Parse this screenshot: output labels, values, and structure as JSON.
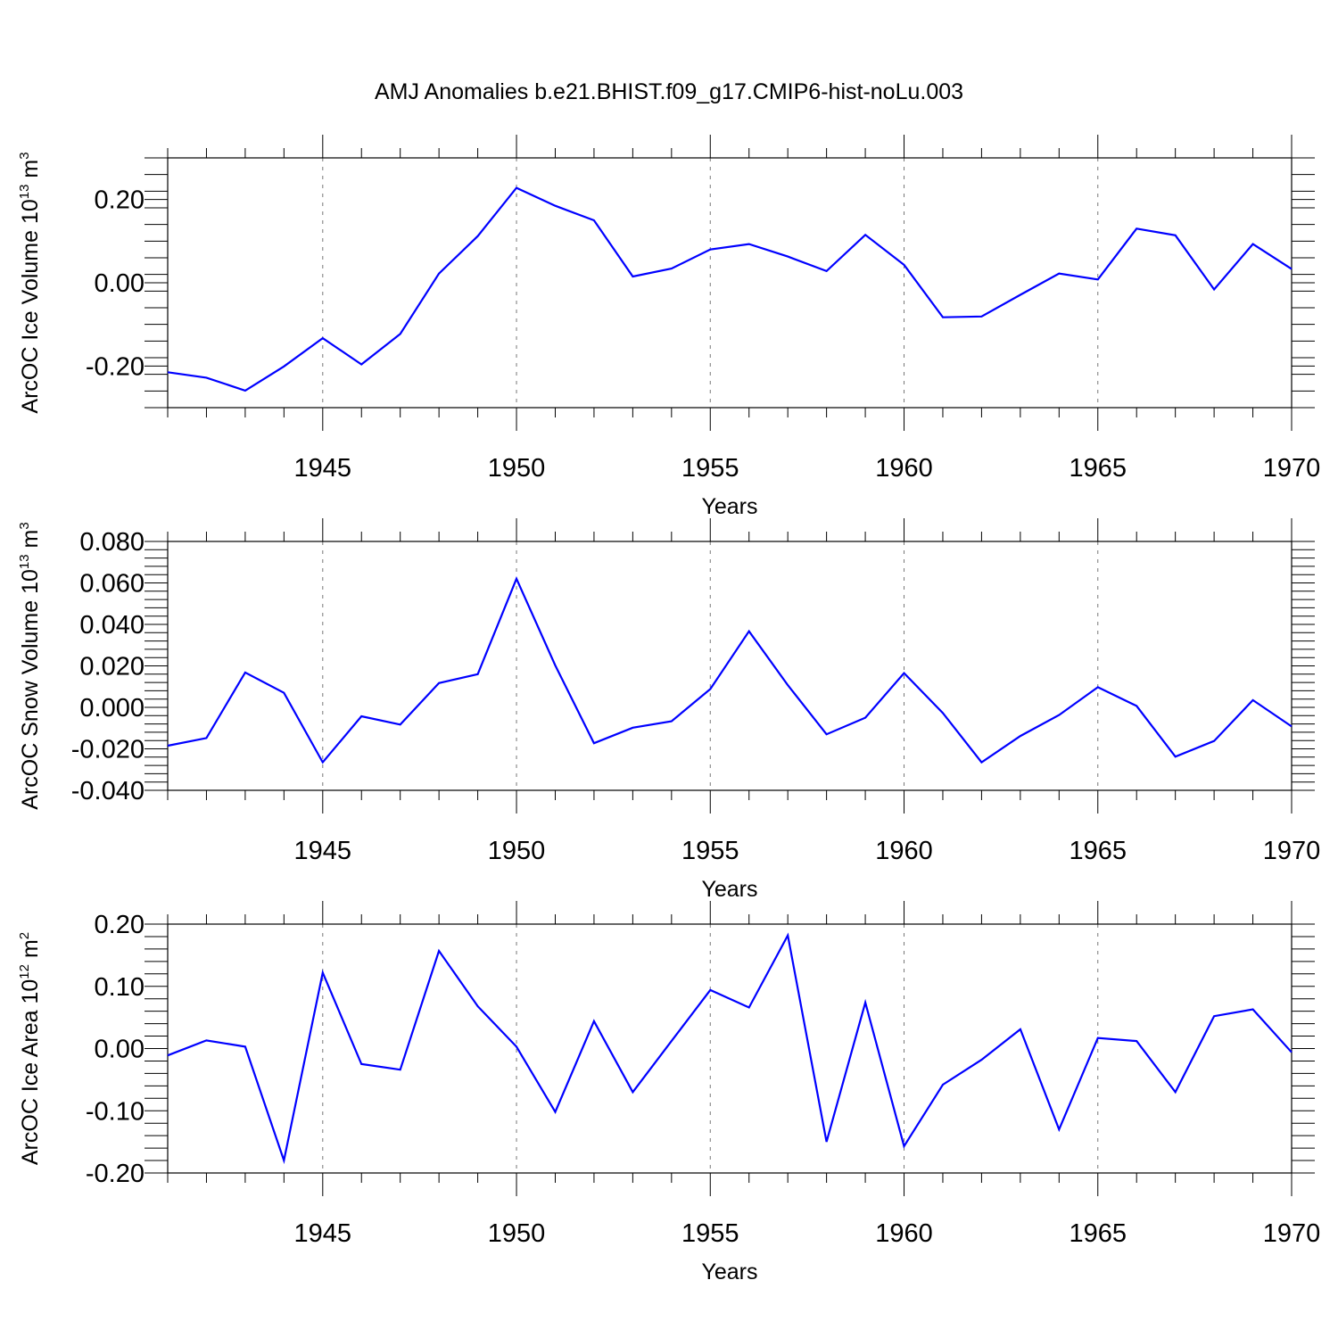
{
  "figure_title": "AMJ Anomalies b.e21.BHIST.f09_g17.CMIP6-hist-noLu.003",
  "chart_data": [
    {
      "type": "line",
      "title": "AMJ Anomalies b.e21.BHIST.f09_g17.CMIP6-hist-noLu.003",
      "xlabel": "Years",
      "ylabel": {
        "text": "ArcOC Ice Volume 10",
        "sup1": "13",
        "unit": " m",
        "sup2": "3"
      },
      "xlim": [
        1941,
        1970
      ],
      "ylim": [
        -0.3,
        0.3
      ],
      "yticks": [
        -0.2,
        0.0,
        0.2
      ],
      "ytick_labels": [
        "-0.20",
        "0.00",
        "0.20"
      ],
      "xticks": [
        1945,
        1950,
        1955,
        1960,
        1965,
        1970
      ],
      "xtick_labels": [
        "1945",
        "1950",
        "1955",
        "1960",
        "1965",
        "1970"
      ],
      "color": "#0000ff",
      "series": [
        {
          "name": "ArcOC Ice Volume",
          "x": [
            1941,
            1942,
            1943,
            1944,
            1945,
            1946,
            1947,
            1948,
            1949,
            1950,
            1951,
            1952,
            1953,
            1954,
            1955,
            1956,
            1957,
            1958,
            1959,
            1960,
            1961,
            1962,
            1963,
            1964,
            1965,
            1966,
            1967,
            1968,
            1969,
            1970
          ],
          "values": [
            -0.215,
            -0.228,
            -0.259,
            -0.201,
            -0.133,
            -0.196,
            -0.123,
            0.022,
            0.112,
            0.228,
            0.185,
            0.15,
            0.015,
            0.034,
            0.08,
            0.093,
            0.063,
            0.028,
            0.115,
            0.043,
            -0.083,
            -0.081,
            -0.029,
            0.022,
            0.008,
            0.13,
            0.114,
            -0.016,
            0.093,
            0.033
          ]
        }
      ]
    },
    {
      "type": "line",
      "xlabel": "Years",
      "ylabel": {
        "text": "ArcOC Snow Volume 10",
        "sup1": "13",
        "unit": " m",
        "sup2": "3"
      },
      "xlim": [
        1941,
        1970
      ],
      "ylim": [
        -0.04,
        0.08
      ],
      "yticks": [
        -0.04,
        -0.02,
        0.0,
        0.02,
        0.04,
        0.06,
        0.08
      ],
      "ytick_labels": [
        "-0.040",
        "-0.020",
        "0.000",
        "0.020",
        "0.040",
        "0.060",
        "0.080"
      ],
      "xticks": [
        1945,
        1950,
        1955,
        1960,
        1965,
        1970
      ],
      "xtick_labels": [
        "1945",
        "1950",
        "1955",
        "1960",
        "1965",
        "1970"
      ],
      "color": "#0000ff",
      "series": [
        {
          "name": "ArcOC Snow Volume",
          "x": [
            1941,
            1942,
            1943,
            1944,
            1945,
            1946,
            1947,
            1948,
            1949,
            1950,
            1951,
            1952,
            1953,
            1954,
            1955,
            1956,
            1957,
            1958,
            1959,
            1960,
            1961,
            1962,
            1963,
            1964,
            1965,
            1966,
            1967,
            1968,
            1969,
            1970
          ],
          "values": [
            -0.0185,
            -0.0148,
            0.0168,
            0.007,
            -0.0265,
            -0.0043,
            -0.0083,
            0.0117,
            0.016,
            0.062,
            0.0202,
            -0.0173,
            -0.0098,
            -0.0067,
            0.0088,
            0.0367,
            0.0107,
            -0.013,
            -0.005,
            0.0165,
            -0.0027,
            -0.0265,
            -0.0138,
            -0.0037,
            0.0097,
            0.0007,
            -0.0238,
            -0.0162,
            0.0035,
            -0.0092
          ]
        }
      ]
    },
    {
      "type": "line",
      "xlabel": "Years",
      "ylabel": {
        "text": "ArcOC Ice Area 10",
        "sup1": "12",
        "unit": " m",
        "sup2": "2"
      },
      "xlim": [
        1941,
        1970
      ],
      "ylim": [
        -0.2,
        0.2
      ],
      "yticks": [
        -0.2,
        -0.1,
        0.0,
        0.1,
        0.2
      ],
      "ytick_labels": [
        "-0.20",
        "-0.10",
        "0.00",
        "0.10",
        "0.20"
      ],
      "xticks": [
        1945,
        1950,
        1955,
        1960,
        1965,
        1970
      ],
      "xtick_labels": [
        "1945",
        "1950",
        "1955",
        "1960",
        "1965",
        "1970"
      ],
      "color": "#0000ff",
      "series": [
        {
          "name": "ArcOC Ice Area",
          "x": [
            1941,
            1942,
            1943,
            1944,
            1945,
            1946,
            1947,
            1948,
            1949,
            1950,
            1951,
            1952,
            1953,
            1954,
            1955,
            1956,
            1957,
            1958,
            1959,
            1960,
            1961,
            1962,
            1963,
            1964,
            1965,
            1966,
            1967,
            1968,
            1969,
            1970
          ],
          "values": [
            -0.011,
            0.013,
            0.003,
            -0.18,
            0.122,
            -0.025,
            -0.034,
            0.157,
            0.068,
            0.003,
            -0.102,
            0.044,
            -0.07,
            0.012,
            0.094,
            0.066,
            0.182,
            -0.15,
            0.074,
            -0.157,
            -0.058,
            -0.018,
            0.031,
            -0.13,
            0.017,
            0.012,
            -0.07,
            0.052,
            0.063,
            -0.006
          ]
        }
      ]
    }
  ]
}
